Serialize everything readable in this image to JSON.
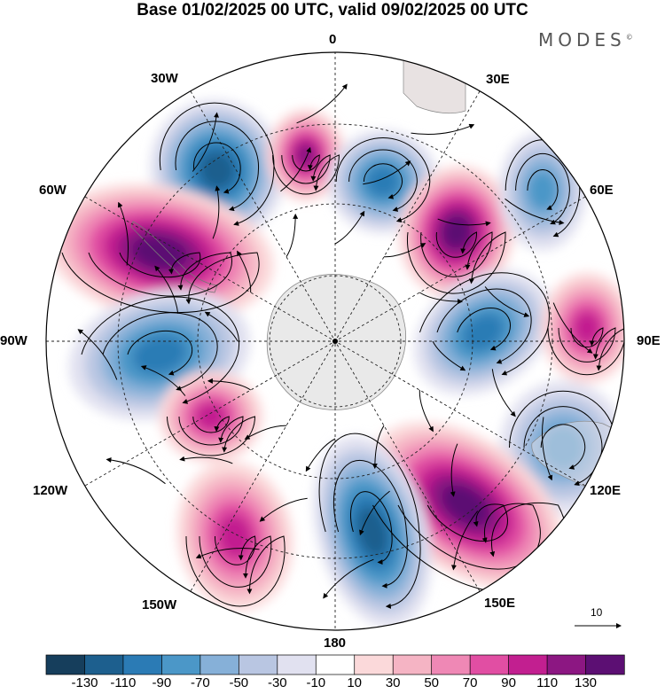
{
  "title": "Base 01/02/2025 00 UTC, valid 09/02/2025 00 UTC",
  "brand": {
    "text": "MODES",
    "mark": "©"
  },
  "map": {
    "projection": "south-polar-stereographic",
    "longitude_labels": {
      "top": "0",
      "top_right": "30E",
      "right_upper": "60E",
      "right": "90E",
      "right_lower": "120E",
      "bottom_right": "150E",
      "bottom": "180",
      "bottom_left": "150W",
      "left_lower": "120W",
      "left": "90W",
      "left_upper": "60W",
      "top_left": "30W"
    },
    "reference_vector": {
      "label": "10"
    }
  },
  "colorbar": {
    "labels": [
      "-130",
      "-110",
      "-90",
      "-70",
      "-50",
      "-30",
      "-10",
      "10",
      "30",
      "50",
      "70",
      "90",
      "110",
      "130"
    ],
    "colors": [
      "#163e5c",
      "#1d5f8e",
      "#2b7bb5",
      "#4b97c8",
      "#86b0d8",
      "#b9c6e2",
      "#e1e1f0",
      "#ffffff",
      "#fbd9da",
      "#f5b4c4",
      "#ef88b5",
      "#e14ea3",
      "#c21f90",
      "#8c1782",
      "#5c0f73"
    ]
  },
  "chart_data": {
    "type": "heatmap",
    "title": "Base 01/02/2025 00 UTC, valid 09/02/2025 00 UTC",
    "color_scale_levels": [
      -130,
      -110,
      -90,
      -70,
      -50,
      -30,
      -10,
      10,
      30,
      50,
      70,
      90,
      110,
      130
    ],
    "anomaly_centers": [
      {
        "sector": "30W-60W",
        "sign": "negative",
        "peak": -110
      },
      {
        "sector": "near 0",
        "sign": "positive",
        "peak": 110
      },
      {
        "sector": "10E-30E",
        "sign": "negative",
        "peak": -90
      },
      {
        "sector": "45E",
        "sign": "positive",
        "peak": 130
      },
      {
        "sector": "60E",
        "sign": "negative",
        "peak": -70
      },
      {
        "sector": "60W-75W",
        "sign": "positive",
        "peak": 130
      },
      {
        "sector": "75E",
        "sign": "negative",
        "peak": -90
      },
      {
        "sector": "90E",
        "sign": "positive",
        "peak": 90
      },
      {
        "sector": "90W-105W",
        "sign": "negative",
        "peak": -90
      },
      {
        "sector": "120E",
        "sign": "negative",
        "peak": -70
      },
      {
        "sector": "120W",
        "sign": "positive",
        "peak": 90
      },
      {
        "sector": "135E-150E",
        "sign": "positive",
        "peak": 130
      },
      {
        "sector": "140W-150W",
        "sign": "positive",
        "peak": 90
      },
      {
        "sector": "165E-180",
        "sign": "negative",
        "peak": -110
      }
    ],
    "vectors": "streamlines of wind anomaly",
    "reference_vector": 10
  }
}
